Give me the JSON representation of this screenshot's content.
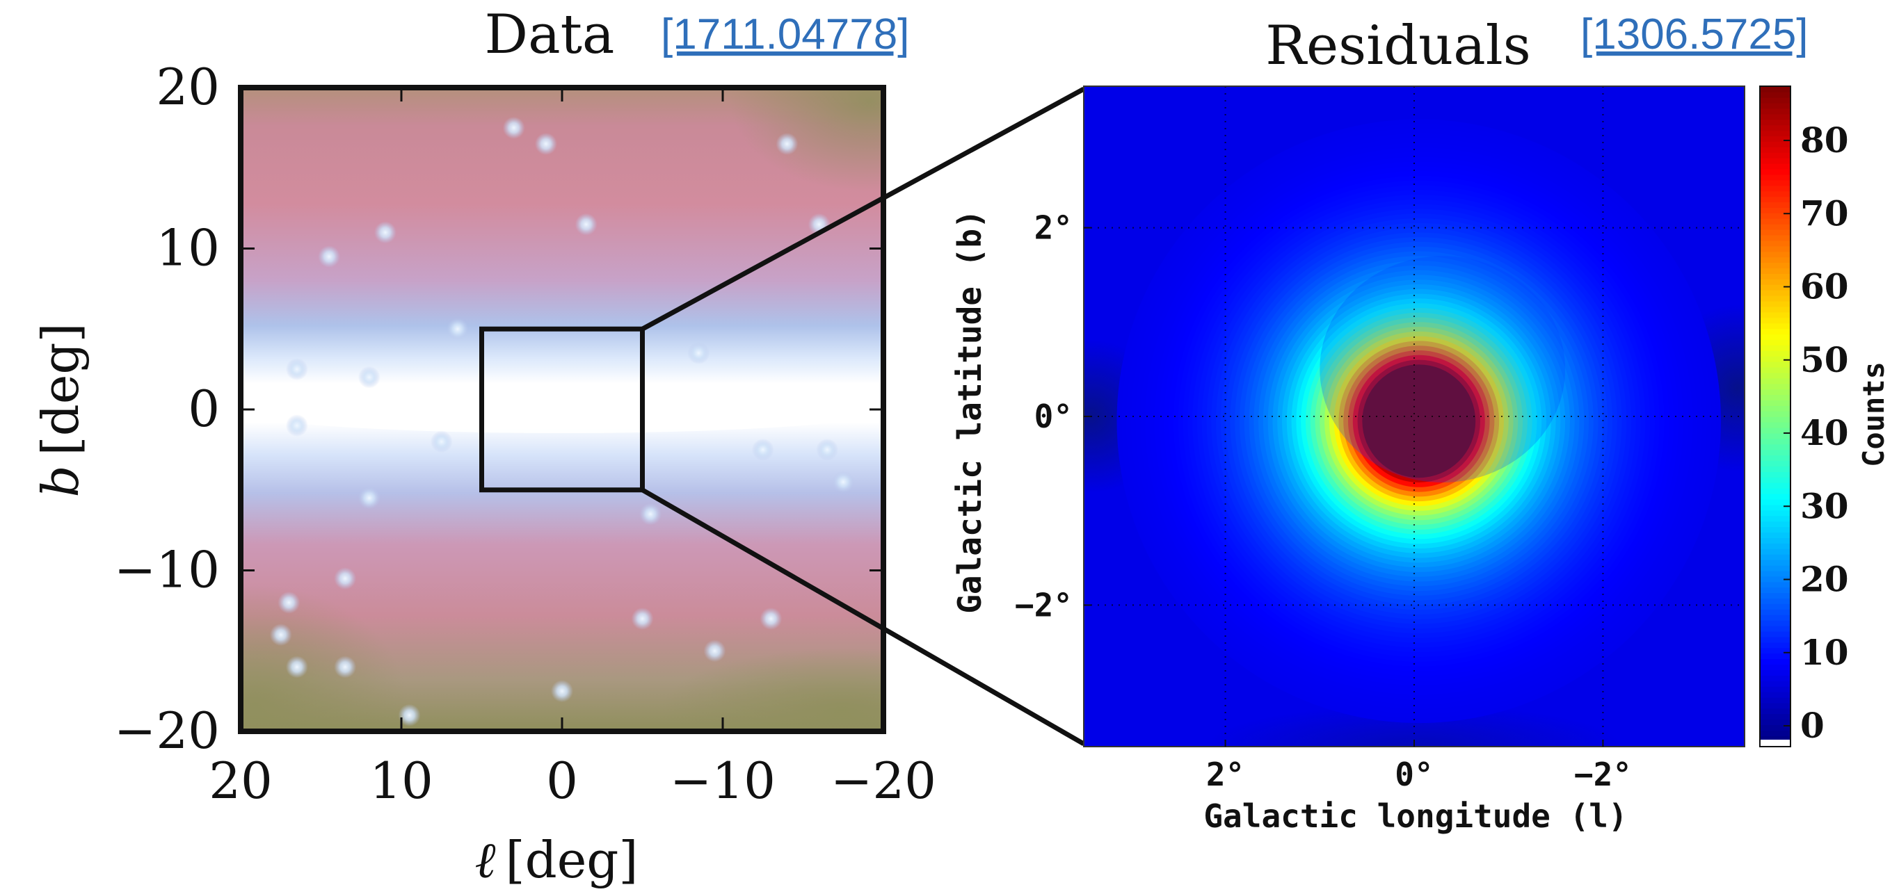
{
  "left_panel": {
    "title": "Data",
    "reference": "[1711.04778]",
    "xlabel_var": "ℓ",
    "xlabel_unit": "[deg]",
    "ylabel_var": "b",
    "ylabel_unit": "[deg]"
  },
  "right_panel": {
    "title": "Residuals",
    "reference": "[1306.5725]",
    "xlabel": "Galactic longitude (l)",
    "ylabel": "Galactic latitude (b)",
    "colorbar_label": "Counts"
  },
  "colors": {
    "link": "#2f6fba",
    "frame": "#111111",
    "plane_glow": "#ffffff",
    "halo_pink": "#d08a9c",
    "halo_olive": "#8f8f5c",
    "map_background": "#1a28d6",
    "peak": "#800000"
  },
  "chart_data": [
    {
      "type": "heatmap",
      "title": "Data",
      "reference": "[1711.04778]",
      "xlabel": "ℓ [deg]",
      "ylabel": "b [deg]",
      "xlim": [
        20,
        -20
      ],
      "ylim": [
        -20,
        20
      ],
      "x_ticks": [
        20,
        10,
        0,
        -10,
        -20
      ],
      "x_tick_labels": [
        "20",
        "10",
        "0",
        "−10",
        "−20"
      ],
      "y_ticks": [
        20,
        10,
        0,
        -10,
        -20
      ],
      "y_tick_labels": [
        "20",
        "10",
        "0",
        "−10",
        "−20"
      ],
      "highlight_box": {
        "l_range": [
          -5,
          5
        ],
        "b_range": [
          -5,
          5
        ]
      },
      "point_sources": [
        {
          "l": 3,
          "b": 17.5
        },
        {
          "l": 1,
          "b": 16.5
        },
        {
          "l": 11,
          "b": 11
        },
        {
          "l": 14.5,
          "b": 9.5
        },
        {
          "l": -1.5,
          "b": 11.5
        },
        {
          "l": -14,
          "b": 16.5
        },
        {
          "l": -16,
          "b": 11.5
        },
        {
          "l": 6.5,
          "b": 5
        },
        {
          "l": 12,
          "b": 2
        },
        {
          "l": 16.5,
          "b": 2.5
        },
        {
          "l": -8.5,
          "b": 3.5
        },
        {
          "l": -12.5,
          "b": -2.5
        },
        {
          "l": -16.5,
          "b": -2.5
        },
        {
          "l": 7.5,
          "b": -2
        },
        {
          "l": 12,
          "b": -5.5
        },
        {
          "l": 16.5,
          "b": -1
        },
        {
          "l": -17.5,
          "b": -4.5
        },
        {
          "l": -5.5,
          "b": -6.5
        },
        {
          "l": 13.5,
          "b": -10.5
        },
        {
          "l": -5,
          "b": -13
        },
        {
          "l": 17.5,
          "b": -14
        },
        {
          "l": 16.5,
          "b": -16
        },
        {
          "l": 13.5,
          "b": -16
        },
        {
          "l": 17,
          "b": -12
        },
        {
          "l": 0,
          "b": -17.5
        },
        {
          "l": 9.5,
          "b": -19
        },
        {
          "l": -9.5,
          "b": -15
        },
        {
          "l": -13,
          "b": -13
        }
      ]
    },
    {
      "type": "heatmap",
      "title": "Residuals",
      "reference": "[1306.5725]",
      "xlabel": "Galactic longitude (l)",
      "ylabel": "Galactic latitude (b)",
      "xlim": [
        3.5,
        -3.5
      ],
      "ylim": [
        -3.5,
        3.5
      ],
      "x_ticks": [
        2,
        0,
        -2
      ],
      "x_tick_labels": [
        "2°",
        "0°",
        "−2°"
      ],
      "y_ticks": [
        2,
        0,
        -2
      ],
      "y_tick_labels": [
        "2°",
        "0°",
        "−2°"
      ],
      "grid": true,
      "colorbar": {
        "label": "Counts",
        "colormap": "jet",
        "range": [
          0,
          88
        ],
        "ticks": [
          0,
          10,
          20,
          30,
          40,
          50,
          60,
          70,
          80
        ],
        "tick_labels": [
          "0",
          "10",
          "20",
          "30",
          "40",
          "50",
          "60",
          "70",
          "80"
        ]
      },
      "components": [
        {
          "l": 0,
          "b": 0,
          "amplitude": 88,
          "sigma_deg": 0.5
        },
        {
          "l": 0,
          "b": 0,
          "amplitude": 36,
          "sigma_deg": 1.0
        },
        {
          "l": -0.3,
          "b": 0.5,
          "amplitude": 7,
          "sigma_deg": 1.3
        }
      ]
    }
  ]
}
